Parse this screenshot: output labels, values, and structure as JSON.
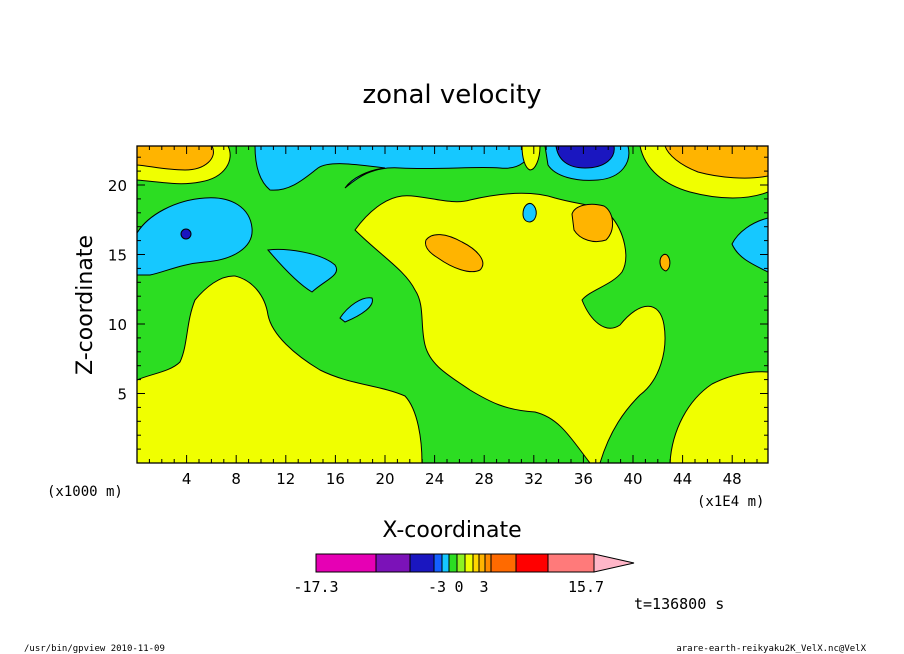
{
  "chart_data": {
    "type": "heatmap",
    "title": "zonal velocity",
    "xlabel": "X-coordinate",
    "ylabel": "Z-coordinate",
    "x_ticks": [
      "4",
      "8",
      "12",
      "16",
      "20",
      "24",
      "28",
      "32",
      "36",
      "40",
      "44",
      "48"
    ],
    "y_ticks": [
      "5",
      "10",
      "15",
      "20"
    ],
    "x_units": "(x1E4 m)",
    "y_units": "(x1000 m)",
    "colorbar": {
      "labels": [
        "-17.3",
        "-3",
        "0",
        "3",
        "15.7"
      ],
      "colors": [
        "#e600b4",
        "#7b12b8",
        "#1a16c0",
        "#1460ff",
        "#16c8ff",
        "#2cdd22",
        "#8ef222",
        "#f0ff00",
        "#ffd700",
        "#ffb400",
        "#ff8a00",
        "#ff6a00",
        "#ff0000",
        "#ff7a7a",
        "#ffb6c8"
      ]
    },
    "time_label": "t=136800 s",
    "regions": [
      {
        "name": "background",
        "level": "0 to 3",
        "color": "#2cdd22"
      },
      {
        "name": "lower-left",
        "level": "3 to 6",
        "color": "#f0ff00"
      },
      {
        "name": "center",
        "level": "3 to 6",
        "color": "#f0ff00"
      },
      {
        "name": "lower-right",
        "level": "3 to 6",
        "color": "#f0ff00"
      },
      {
        "name": "upper-left",
        "level": "-3 to 0",
        "color": "#16c8ff"
      },
      {
        "name": "top-center",
        "level": "below -3",
        "color": "#1a16c0"
      },
      {
        "name": "top-right",
        "level": "above 6",
        "color": "#ffb400"
      }
    ]
  },
  "footer": {
    "left": "/usr/bin/gpview  2010-11-09",
    "right": "arare-earth-reikyaku2K_VelX.nc@VelX"
  }
}
